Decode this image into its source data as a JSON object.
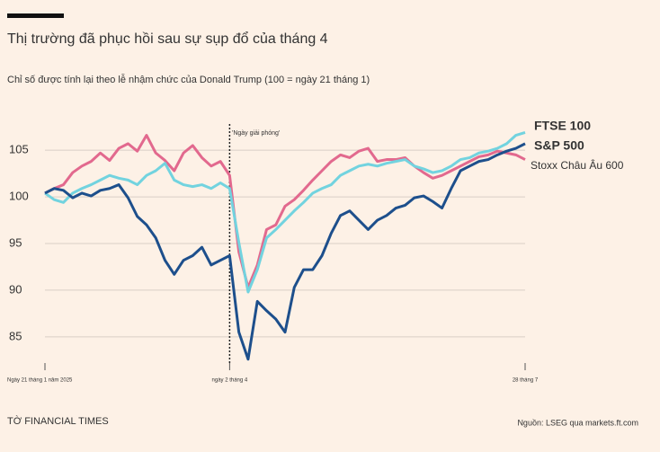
{
  "chart_data": {
    "type": "line",
    "title": "Thị trường đã phục hồi sau sự sụp đổ của tháng 4",
    "subtitle": "Chỉ số được tính lại theo lễ nhậm chức của Donald Trump (100 = ngày 21 tháng 1)",
    "annotation": "'Ngày giải phóng'",
    "brand": "TỜ FINANCIAL TIMES",
    "source": "Nguồn: LSEG qua markets.ft.com",
    "categories": [
      "Ngày 21 tháng 1 năm 2025",
      null,
      null,
      null,
      null,
      null,
      null,
      null,
      null,
      null,
      null,
      null,
      null,
      null,
      null,
      null,
      null,
      null,
      null,
      null,
      "ngày 2 tháng 4",
      null,
      null,
      null,
      null,
      null,
      null,
      null,
      null,
      null,
      null,
      null,
      null,
      null,
      null,
      null,
      null,
      null,
      null,
      null,
      null,
      null,
      null,
      null,
      null,
      null,
      null,
      null,
      null,
      null,
      null,
      null,
      "28 tháng 7"
    ],
    "series": [
      {
        "name": "FTSE 100",
        "color": "#72d3df",
        "values": [
          100.4,
          99.7,
          99.4,
          100.4,
          100.9,
          101.3,
          101.8,
          102.3,
          102.0,
          101.8,
          101.3,
          102.3,
          102.8,
          103.6,
          101.8,
          101.3,
          101.1,
          101.3,
          100.9,
          101.5,
          100.9,
          95.1,
          89.8,
          92.2,
          95.6,
          96.5,
          97.5,
          98.5,
          99.4,
          100.4,
          100.9,
          101.3,
          102.3,
          102.8,
          103.3,
          103.5,
          103.3,
          103.6,
          103.8,
          104.0,
          103.3,
          103.0,
          102.6,
          102.8,
          103.3,
          104.0,
          104.2,
          104.7,
          104.9,
          105.2,
          105.7,
          106.6,
          106.9
        ]
      },
      {
        "name": "S&P 500",
        "color": "#1d4f8c",
        "values": [
          100.4,
          100.9,
          100.7,
          99.9,
          100.4,
          100.1,
          100.7,
          100.9,
          101.3,
          99.9,
          97.9,
          97.0,
          95.6,
          93.2,
          91.7,
          93.2,
          93.7,
          94.6,
          92.7,
          93.2,
          93.7,
          85.5,
          82.6,
          88.8,
          87.8,
          86.9,
          85.5,
          90.3,
          92.2,
          92.2,
          93.7,
          96.1,
          98.0,
          98.5,
          97.5,
          96.5,
          97.5,
          98.0,
          98.8,
          99.1,
          99.9,
          100.1,
          99.5,
          98.8,
          100.9,
          102.8,
          103.3,
          103.8,
          104.0,
          104.5,
          104.9,
          105.2,
          105.7
        ]
      },
      {
        "name": "Stoxx Châu Âu 600",
        "color": "#e2698e",
        "values": [
          100.4,
          100.9,
          101.3,
          102.6,
          103.3,
          103.8,
          104.7,
          103.9,
          105.2,
          105.7,
          104.9,
          106.6,
          104.7,
          103.9,
          102.8,
          104.7,
          105.5,
          104.2,
          103.3,
          103.8,
          102.3,
          94.1,
          90.3,
          92.7,
          96.5,
          97.0,
          99.0,
          99.7,
          100.7,
          101.8,
          102.8,
          103.8,
          104.5,
          104.2,
          104.9,
          105.2,
          103.8,
          104.0,
          104.0,
          104.2,
          103.3,
          102.6,
          102.0,
          102.3,
          102.8,
          103.3,
          103.8,
          104.3,
          104.5,
          104.9,
          104.7,
          104.5,
          104.0
        ]
      }
    ],
    "ylim": [
      82,
      108
    ],
    "yticks": [
      85,
      90,
      95,
      100,
      105
    ],
    "grid": true
  }
}
